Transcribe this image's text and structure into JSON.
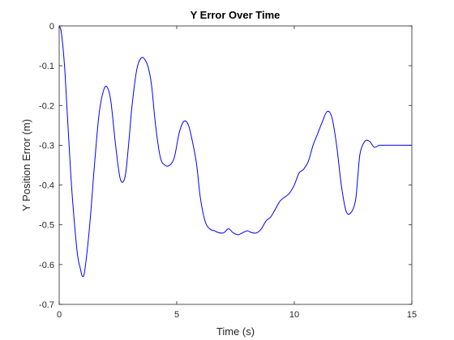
{
  "chart_data": {
    "type": "line",
    "title": "Y Error Over Time",
    "xlabel": "Time (s)",
    "ylabel": "Y Position Error (m)",
    "xlim": [
      0,
      15
    ],
    "ylim": [
      -0.7,
      0
    ],
    "xticks": [
      0,
      5,
      10,
      15
    ],
    "xtick_labels": [
      "0",
      "5",
      "10",
      "15"
    ],
    "yticks": [
      0,
      -0.1,
      -0.2,
      -0.3,
      -0.4,
      -0.5,
      -0.6,
      -0.7
    ],
    "ytick_labels": [
      "0",
      "-0.1",
      "-0.2",
      "-0.3",
      "-0.4",
      "-0.5",
      "-0.6",
      "-0.7"
    ],
    "grid": false,
    "line_color": "#0000ff",
    "series": [
      {
        "x": [
          0,
          0.1,
          0.25,
          0.5,
          0.75,
          0.9,
          1.0,
          1.1,
          1.3,
          1.5,
          1.7,
          1.9,
          2.05,
          2.2,
          2.4,
          2.6,
          2.8,
          2.95,
          3.1,
          3.3,
          3.5,
          3.7,
          3.85,
          3.95,
          4.1,
          4.3,
          4.5,
          4.7,
          4.9,
          5.1,
          5.3,
          5.5,
          5.7,
          5.85,
          6.0,
          6.2,
          6.4,
          6.6,
          6.8,
          7.0,
          7.2,
          7.4,
          7.6,
          7.8,
          8.0,
          8.2,
          8.4,
          8.6,
          8.8,
          9.0,
          9.2,
          9.4,
          9.6,
          9.8,
          10.0,
          10.2,
          10.4,
          10.6,
          10.8,
          11.0,
          11.2,
          11.4,
          11.6,
          11.8,
          12.0,
          12.2,
          12.4,
          12.6,
          12.7,
          12.8,
          13.0,
          13.2,
          13.4,
          13.6,
          13.75,
          13.9,
          14.1,
          14.3,
          14.5,
          14.7,
          14.85,
          15.0
        ],
        "y": [
          0,
          -0.02,
          -0.12,
          -0.38,
          -0.56,
          -0.61,
          -0.63,
          -0.61,
          -0.5,
          -0.35,
          -0.22,
          -0.16,
          -0.155,
          -0.19,
          -0.3,
          -0.385,
          -0.38,
          -0.3,
          -0.2,
          -0.11,
          -0.08,
          -0.09,
          -0.12,
          -0.16,
          -0.25,
          -0.33,
          -0.35,
          -0.35,
          -0.33,
          -0.27,
          -0.24,
          -0.25,
          -0.3,
          -0.35,
          -0.43,
          -0.49,
          -0.51,
          -0.515,
          -0.52,
          -0.52,
          -0.51,
          -0.52,
          -0.525,
          -0.52,
          -0.515,
          -0.52,
          -0.52,
          -0.51,
          -0.49,
          -0.48,
          -0.46,
          -0.44,
          -0.43,
          -0.42,
          -0.4,
          -0.37,
          -0.36,
          -0.34,
          -0.3,
          -0.27,
          -0.24,
          -0.215,
          -0.23,
          -0.3,
          -0.4,
          -0.465,
          -0.47,
          -0.44,
          -0.38,
          -0.32,
          -0.29,
          -0.29,
          -0.305,
          -0.3,
          -0.3,
          -0.3,
          -0.3,
          -0.3,
          -0.3,
          -0.3,
          -0.3,
          -0.3
        ]
      }
    ]
  }
}
